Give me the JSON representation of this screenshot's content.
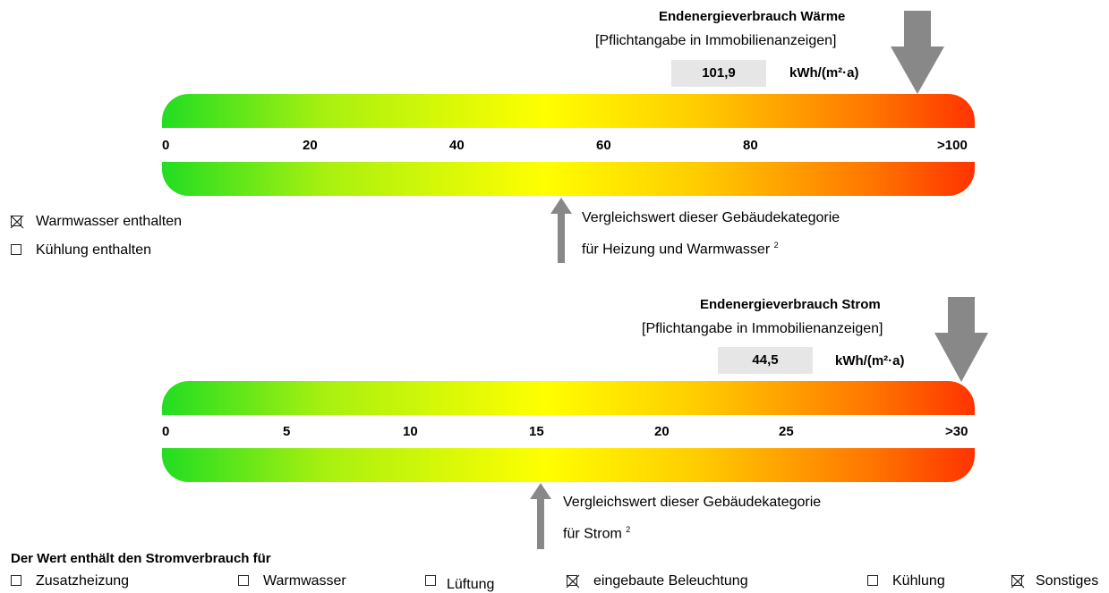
{
  "heat": {
    "title": "Endenergieverbrauch Wärme",
    "subtitle": "[Pflichtangabe in Immobilienanzeigen]",
    "value": "101,9",
    "unit": "kWh/(m²·a)",
    "ticks": [
      "0",
      "20",
      "40",
      "60",
      "80",
      ">100"
    ],
    "comparison_line1": "Vergleichswert dieser Gebäudekategorie",
    "comparison_line2": "für Heizung und Warmwasser",
    "footnote": "2",
    "options": [
      {
        "label": "Warmwasser enthalten",
        "checked": true
      },
      {
        "label": "Kühlung enthalten",
        "checked": false
      }
    ]
  },
  "power": {
    "title": "Endenergieverbrauch Strom",
    "subtitle": "[Pflichtangabe in Immobilienanzeigen]",
    "value": "44,5",
    "unit": "kWh/(m²·a)",
    "ticks": [
      "0",
      "5",
      "10",
      "15",
      "20",
      "25",
      ">30"
    ],
    "comparison_line1": "Vergleichswert dieser Gebäudekategorie",
    "comparison_line2": "für Strom",
    "footnote": "2",
    "includes_heading": "Der Wert enthält den Stromverbrauch für",
    "includes": [
      {
        "label": "Zusatzheizung",
        "checked": false
      },
      {
        "label": "Warmwasser",
        "checked": false
      },
      {
        "label": "Lüftung",
        "checked": false
      },
      {
        "label": "eingebaute Beleuchtung",
        "checked": true
      },
      {
        "label": "Kühlung",
        "checked": false
      },
      {
        "label": "Sonstiges",
        "checked": true
      }
    ]
  },
  "colors": {
    "scale_start": "#22dd22",
    "scale_mid": "#ffff00",
    "scale_end": "#ff3300",
    "arrow": "#888888",
    "value_box": "#e6e6e6"
  }
}
